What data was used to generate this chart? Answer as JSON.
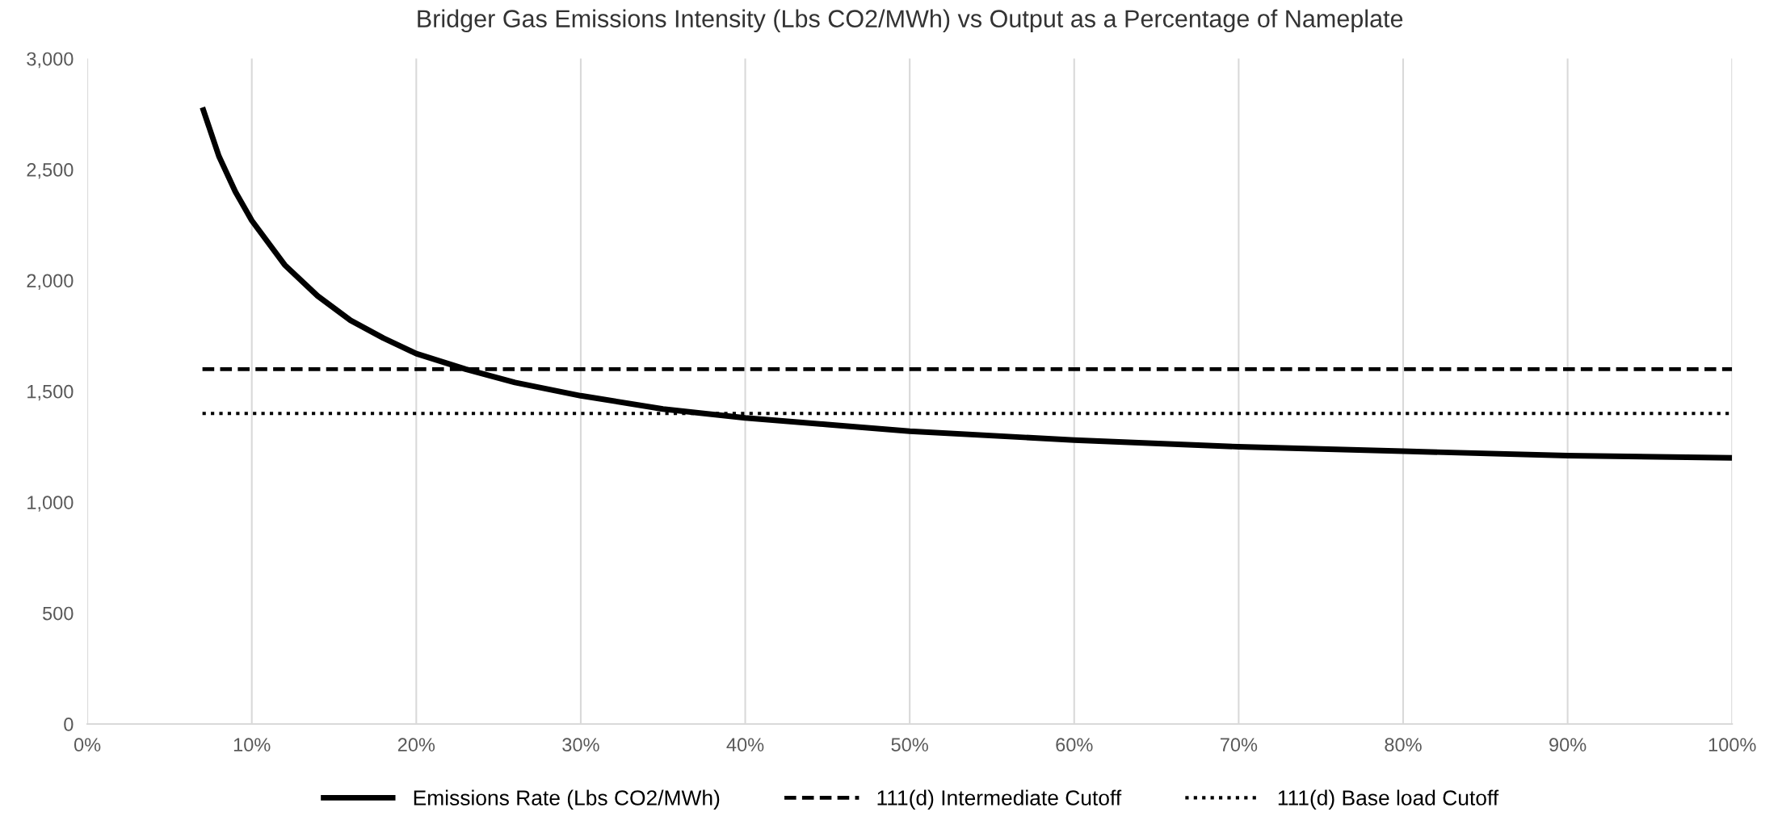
{
  "chart_data": {
    "type": "line",
    "title": "Bridger Gas Emissions Intensity (Lbs CO2/MWh) vs Output as a Percentage of Nameplate",
    "series": [
      {
        "name": "Emissions Rate (Lbs CO2/MWh)",
        "color": "#000000",
        "line_style": "solid",
        "x": [
          0.07,
          0.08,
          0.09,
          0.1,
          0.12,
          0.14,
          0.16,
          0.18,
          0.2,
          0.23,
          0.26,
          0.3,
          0.35,
          0.4,
          0.45,
          0.5,
          0.6,
          0.7,
          0.8,
          0.9,
          1.0
        ],
        "values": [
          2780,
          2560,
          2400,
          2270,
          2070,
          1930,
          1820,
          1740,
          1670,
          1600,
          1540,
          1480,
          1420,
          1380,
          1350,
          1320,
          1280,
          1250,
          1230,
          1210,
          1200
        ]
      },
      {
        "name": "111(d) Intermediate Cutoff",
        "color": "#000000",
        "line_style": "dashed",
        "x": [
          0.07,
          1.0
        ],
        "values": [
          1600,
          1600
        ]
      },
      {
        "name": "111(d) Base load Cutoff",
        "color": "#000000",
        "line_style": "dotted",
        "x": [
          0.07,
          1.0
        ],
        "values": [
          1400,
          1400
        ]
      }
    ],
    "xlim": [
      0,
      1
    ],
    "xticks": [
      {
        "value": 0,
        "label": "0%"
      },
      {
        "value": 0.1,
        "label": "10%"
      },
      {
        "value": 0.2,
        "label": "20%"
      },
      {
        "value": 0.3,
        "label": "30%"
      },
      {
        "value": 0.4,
        "label": "40%"
      },
      {
        "value": 0.5,
        "label": "50%"
      },
      {
        "value": 0.6,
        "label": "60%"
      },
      {
        "value": 0.7,
        "label": "70%"
      },
      {
        "value": 0.8,
        "label": "80%"
      },
      {
        "value": 0.9,
        "label": "90%"
      },
      {
        "value": 1.0,
        "label": "100%"
      }
    ],
    "ylim": [
      0,
      3000
    ],
    "yticks": [
      {
        "value": 0,
        "label": "0"
      },
      {
        "value": 500,
        "label": "500"
      },
      {
        "value": 1000,
        "label": "1,000"
      },
      {
        "value": 1500,
        "label": "1,500"
      },
      {
        "value": 2000,
        "label": "2,000"
      },
      {
        "value": 2500,
        "label": "2,500"
      },
      {
        "value": 3000,
        "label": "3,000"
      }
    ],
    "grid": "x",
    "legend": "bottom",
    "marker": "none"
  }
}
